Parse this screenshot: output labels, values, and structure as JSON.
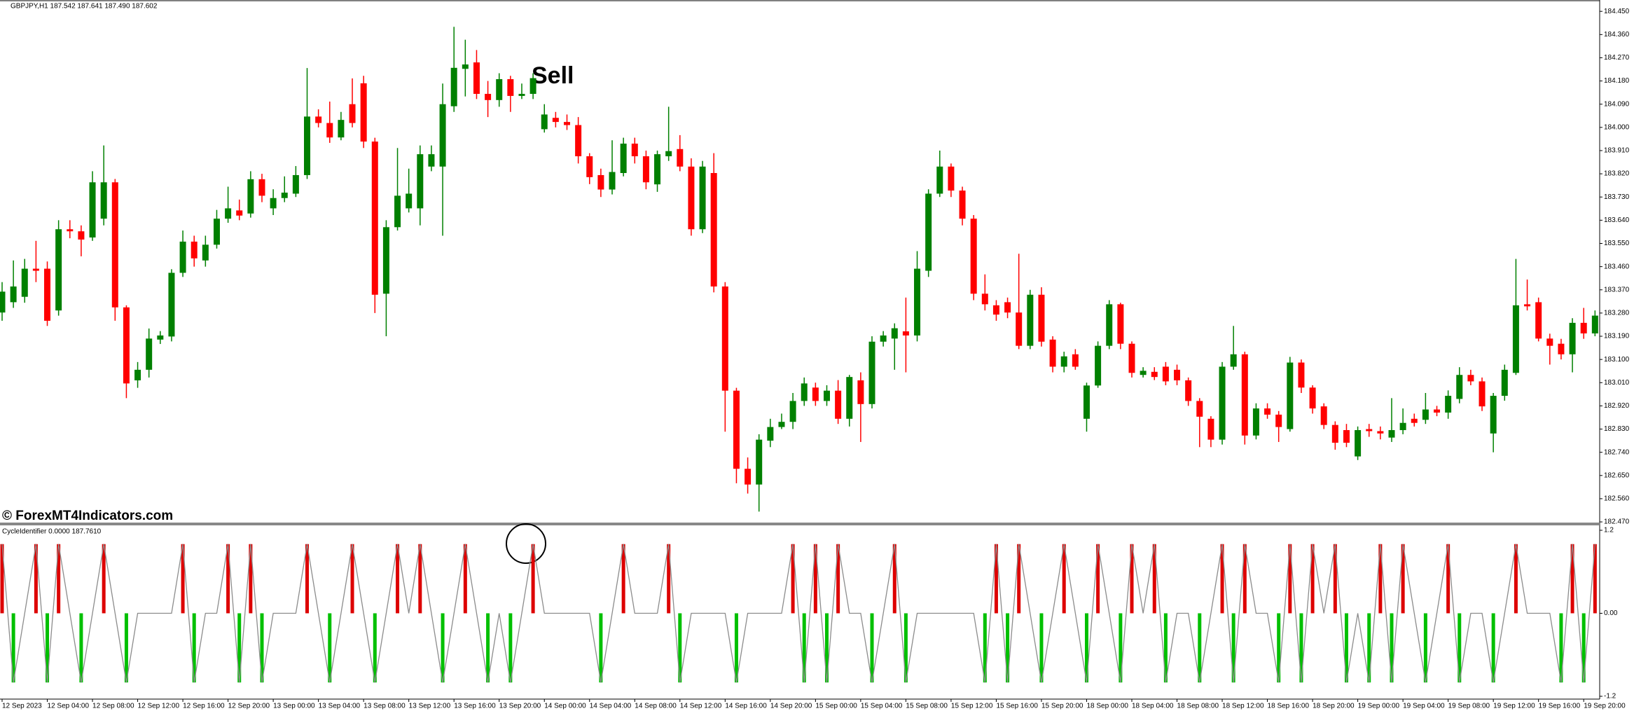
{
  "chart_data": [
    {
      "type": "candlestick",
      "title": "GBPJPY,H1  187.542 187.641 187.490 187.602",
      "annotation": "Sell",
      "watermark": "© ForexMT4Indicators.com",
      "up_color": "#008000",
      "down_color": "#ff0000",
      "categories": [
        "12 Sep 2023",
        null,
        null,
        null,
        "12 Sep 04:00",
        null,
        null,
        null,
        "12 Sep 08:00",
        null,
        null,
        null,
        "12 Sep 12:00",
        null,
        null,
        null,
        "12 Sep 16:00",
        null,
        null,
        null,
        "12 Sep 20:00",
        null,
        null,
        null,
        "13 Sep 00:00",
        null,
        null,
        null,
        "13 Sep 04:00",
        null,
        null,
        null,
        "13 Sep 08:00",
        null,
        null,
        null,
        "13 Sep 12:00",
        null,
        null,
        null,
        "13 Sep 16:00",
        null,
        null,
        null,
        "13 Sep 20:00",
        null,
        null,
        null,
        "14 Sep 00:00",
        null,
        null,
        null,
        "14 Sep 04:00",
        null,
        null,
        null,
        "14 Sep 08:00",
        null,
        null,
        null,
        "14 Sep 12:00",
        null,
        null,
        null,
        "14 Sep 16:00",
        null,
        null,
        null,
        "14 Sep 20:00",
        null,
        null,
        null,
        "15 Sep 00:00",
        null,
        null,
        null,
        "15 Sep 04:00",
        null,
        null,
        null,
        "15 Sep 08:00",
        null,
        null,
        null,
        "15 Sep 12:00",
        null,
        null,
        null,
        "15 Sep 16:00",
        null,
        null,
        null,
        "15 Sep 20:00",
        null,
        null,
        null,
        "18 Sep 00:00",
        null,
        null,
        null,
        "18 Sep 04:00",
        null,
        null,
        null,
        "18 Sep 08:00",
        null,
        null,
        null,
        "18 Sep 12:00",
        null,
        null,
        null,
        "18 Sep 16:00",
        null,
        null,
        null,
        "18 Sep 20:00",
        null,
        null,
        null,
        "19 Sep 00:00",
        null,
        null,
        null,
        "19 Sep 04:00",
        null,
        null,
        null,
        "19 Sep 08:00",
        null,
        null,
        null,
        "19 Sep 12:00",
        null,
        null,
        null,
        "19 Sep 16:00",
        null,
        null,
        null,
        "19 Sep 20:00",
        null
      ],
      "open": [
        183.282,
        183.322,
        183.343,
        183.452,
        183.452,
        183.29,
        183.605,
        183.597,
        183.573,
        183.646,
        183.787,
        183.302,
        183.019,
        183.06,
        183.177,
        183.189,
        183.436,
        183.557,
        183.484,
        183.545,
        183.646,
        183.678,
        183.666,
        183.799,
        183.686,
        183.726,
        183.743,
        183.815,
        184.042,
        184.017,
        183.961,
        184.09,
        184.171,
        183.945,
        183.355,
        183.613,
        183.686,
        183.686,
        183.848,
        183.848,
        184.082,
        184.227,
        184.252,
        184.13,
        184.106,
        184.187,
        184.122,
        184.13,
        183.993,
        184.037,
        184.021,
        184.009,
        183.888,
        183.815,
        183.759,
        183.823,
        183.937,
        183.888,
        183.779,
        183.888,
        183.916,
        183.848,
        183.605,
        183.823,
        183.383,
        182.979,
        182.676,
        182.615,
        182.785,
        182.838,
        182.858,
        182.939,
        182.991,
        182.939,
        182.979,
        182.87,
        183.019,
        182.927,
        183.169,
        183.181,
        183.209,
        183.193,
        183.444,
        183.743,
        183.848,
        183.755,
        183.646,
        183.355,
        183.31,
        183.322,
        183.282,
        183.153,
        183.351,
        183.177,
        183.072,
        183.12,
        182.87,
        182.999,
        183.153,
        183.314,
        183.161,
        183.04,
        183.052,
        183.072,
        183.06,
        183.019,
        182.939,
        182.87,
        182.789,
        183.072,
        183.12,
        182.805,
        182.91,
        182.886,
        182.83,
        183.088,
        182.991,
        182.918,
        182.846,
        182.826,
        182.724,
        182.83,
        182.822,
        182.797,
        182.826,
        182.87,
        182.866,
        182.906,
        182.894,
        182.947,
        183.04,
        183.015,
        182.813,
        182.959,
        183.048,
        183.314,
        183.322,
        183.181,
        183.161,
        183.12,
        183.242,
        183.201
      ],
      "high": [
        183.4,
        183.484,
        183.49,
        183.56,
        183.48,
        183.64,
        183.64,
        183.62,
        183.83,
        183.93,
        183.8,
        183.31,
        183.09,
        183.22,
        183.21,
        183.45,
        183.6,
        183.58,
        183.58,
        183.68,
        183.77,
        183.72,
        183.83,
        183.82,
        183.76,
        183.81,
        183.85,
        184.23,
        184.07,
        184.1,
        184.06,
        184.19,
        184.2,
        183.96,
        183.64,
        183.92,
        183.84,
        183.93,
        183.93,
        184.17,
        184.39,
        184.34,
        184.3,
        184.18,
        184.21,
        184.2,
        184.17,
        184.21,
        184.09,
        184.06,
        184.05,
        184.04,
        183.9,
        183.84,
        183.95,
        183.96,
        183.96,
        183.91,
        183.91,
        184.08,
        183.97,
        183.88,
        183.87,
        183.9,
        183.4,
        182.99,
        182.72,
        182.81,
        182.87,
        182.89,
        182.97,
        183.03,
        183.01,
        183.0,
        183.02,
        183.04,
        183.05,
        183.19,
        183.21,
        183.24,
        183.34,
        183.52,
        183.76,
        183.91,
        183.86,
        183.77,
        183.66,
        183.43,
        183.33,
        183.34,
        183.51,
        183.37,
        183.38,
        183.19,
        183.13,
        183.14,
        183.01,
        183.17,
        183.33,
        183.32,
        183.17,
        183.07,
        183.07,
        183.09,
        183.08,
        183.03,
        182.95,
        182.88,
        183.09,
        183.23,
        183.13,
        182.93,
        182.93,
        182.9,
        183.11,
        183.1,
        183.0,
        182.93,
        182.86,
        182.85,
        182.84,
        182.85,
        182.84,
        182.95,
        182.91,
        182.89,
        182.97,
        182.92,
        182.98,
        183.07,
        183.06,
        183.03,
        182.97,
        183.08,
        183.49,
        183.41,
        183.34,
        183.2,
        183.18,
        183.26,
        183.3,
        183.29
      ],
      "low": [
        183.25,
        183.3,
        183.32,
        183.4,
        183.23,
        183.27,
        183.57,
        183.5,
        183.56,
        183.62,
        183.25,
        182.95,
        182.99,
        183.03,
        183.16,
        183.17,
        183.42,
        183.46,
        183.46,
        183.53,
        183.63,
        183.64,
        183.65,
        183.71,
        183.66,
        183.71,
        183.73,
        183.8,
        184.0,
        183.94,
        183.95,
        184.0,
        183.92,
        183.28,
        183.19,
        183.6,
        183.67,
        183.62,
        183.83,
        183.58,
        184.06,
        184.12,
        184.11,
        184.04,
        184.08,
        184.06,
        184.11,
        184.11,
        183.98,
        184.0,
        183.99,
        183.86,
        183.78,
        183.73,
        183.74,
        183.81,
        183.86,
        183.76,
        183.75,
        183.87,
        183.83,
        183.58,
        183.59,
        183.36,
        182.82,
        182.62,
        182.58,
        182.51,
        182.76,
        182.83,
        182.83,
        182.92,
        182.92,
        182.92,
        182.85,
        182.84,
        182.78,
        182.91,
        183.15,
        183.06,
        183.05,
        183.17,
        183.42,
        183.73,
        183.73,
        183.62,
        183.33,
        183.29,
        183.25,
        183.26,
        183.14,
        183.14,
        183.15,
        183.05,
        183.05,
        183.06,
        182.82,
        182.99,
        183.14,
        183.14,
        183.03,
        183.03,
        183.02,
        183.0,
        183.0,
        182.92,
        182.76,
        182.76,
        182.77,
        183.06,
        182.77,
        182.79,
        182.87,
        182.78,
        182.82,
        182.97,
        182.89,
        182.83,
        182.75,
        182.76,
        182.71,
        182.8,
        182.79,
        182.78,
        182.81,
        182.84,
        182.85,
        182.88,
        182.87,
        182.93,
        183.0,
        182.9,
        182.74,
        182.94,
        183.04,
        183.29,
        183.17,
        183.08,
        183.1,
        183.05,
        183.18,
        183.19
      ],
      "close": [
        183.363,
        183.383,
        183.452,
        183.444,
        183.25,
        183.605,
        183.597,
        183.565,
        183.787,
        183.787,
        183.302,
        183.007,
        183.06,
        183.181,
        183.193,
        183.436,
        183.557,
        183.492,
        183.545,
        183.646,
        183.686,
        183.658,
        183.799,
        183.735,
        183.726,
        183.747,
        183.815,
        184.042,
        184.017,
        183.961,
        184.029,
        184.017,
        183.945,
        183.351,
        183.613,
        183.735,
        183.743,
        183.896,
        183.896,
        184.09,
        184.231,
        184.244,
        184.13,
        184.106,
        184.187,
        184.122,
        184.13,
        184.191,
        184.05,
        184.021,
        184.009,
        183.888,
        183.807,
        183.759,
        183.827,
        183.937,
        183.888,
        183.787,
        183.896,
        183.908,
        183.848,
        183.605,
        183.848,
        183.383,
        182.979,
        182.676,
        182.615,
        182.789,
        182.838,
        182.858,
        182.939,
        183.007,
        182.939,
        182.979,
        182.87,
        183.032,
        182.927,
        183.169,
        183.193,
        183.221,
        183.193,
        183.452,
        183.743,
        183.848,
        183.755,
        183.646,
        183.355,
        183.314,
        183.274,
        183.282,
        183.153,
        183.351,
        183.169,
        183.072,
        183.112,
        183.072,
        182.999,
        183.153,
        183.314,
        183.161,
        183.048,
        183.056,
        183.032,
        183.015,
        183.019,
        182.939,
        182.878,
        182.789,
        183.072,
        183.12,
        182.805,
        182.91,
        182.886,
        182.838,
        183.088,
        182.991,
        182.91,
        182.846,
        182.777,
        182.777,
        182.826,
        182.822,
        182.813,
        182.826,
        182.854,
        182.854,
        182.906,
        182.894,
        182.959,
        183.04,
        183.015,
        182.918,
        182.959,
        183.06,
        183.31,
        183.306,
        183.181,
        183.153,
        183.12,
        183.242,
        183.201,
        183.27
      ],
      "ylim": [
        182.462,
        184.494
      ],
      "yticks": [
        {
          "value": 184.45,
          "label": "184.450"
        },
        {
          "value": 184.36,
          "label": "184.360"
        },
        {
          "value": 184.27,
          "label": "184.270"
        },
        {
          "value": 184.18,
          "label": "184.180"
        },
        {
          "value": 184.09,
          "label": "184.090"
        },
        {
          "value": 184.0,
          "label": "184.000"
        },
        {
          "value": 183.91,
          "label": "183.910"
        },
        {
          "value": 183.82,
          "label": "183.820"
        },
        {
          "value": 183.73,
          "label": "183.730"
        },
        {
          "value": 183.64,
          "label": "183.640"
        },
        {
          "value": 183.55,
          "label": "183.550"
        },
        {
          "value": 183.46,
          "label": "183.460"
        },
        {
          "value": 183.37,
          "label": "183.370"
        },
        {
          "value": 183.28,
          "label": "183.280"
        },
        {
          "value": 183.19,
          "label": "183.190"
        },
        {
          "value": 183.1,
          "label": "183.100"
        },
        {
          "value": 183.01,
          "label": "183.010"
        },
        {
          "value": 182.92,
          "label": "182.920"
        },
        {
          "value": 182.83,
          "label": "182.830"
        },
        {
          "value": 182.74,
          "label": "182.740"
        },
        {
          "value": 182.65,
          "label": "182.650"
        },
        {
          "value": 182.56,
          "label": "182.560"
        },
        {
          "value": 182.47,
          "label": "182.470"
        }
      ]
    },
    {
      "type": "oscillator",
      "title": "CycleIdentifier 0.0000 187.7610",
      "line": {
        "color": "#8c8c8c",
        "values": [
          1,
          -1,
          0,
          1,
          -1,
          1,
          0,
          -1,
          0,
          1,
          0,
          -1,
          0,
          0,
          0,
          0,
          1,
          -1,
          0,
          0,
          1,
          -1,
          1,
          -1,
          0,
          0,
          0,
          1,
          0,
          -1,
          0,
          1,
          0,
          -1,
          0,
          1,
          0,
          1,
          0,
          -1,
          0,
          1,
          0,
          -1,
          0,
          -1,
          0,
          1,
          0,
          0,
          0,
          0,
          0,
          -1,
          0,
          1,
          0,
          0,
          0,
          1,
          -1,
          0,
          0,
          0,
          0,
          -1,
          0,
          0,
          0,
          0,
          1,
          -1,
          1,
          -1,
          1,
          0,
          0,
          -1,
          0,
          1,
          -1,
          0,
          0,
          0,
          0,
          0,
          0,
          -1,
          1,
          -1,
          1,
          0,
          -1,
          0,
          1,
          0,
          -1,
          1,
          0,
          -1,
          1,
          0,
          1,
          -1,
          0,
          0,
          -1,
          0,
          1,
          -1,
          1,
          0,
          0,
          -1,
          1,
          -1,
          1,
          0,
          1,
          -1,
          0,
          -1,
          1,
          -1,
          1,
          0,
          -1,
          0,
          1,
          -1,
          0,
          0,
          -1,
          0,
          1,
          0,
          0,
          0,
          -1,
          1,
          -1,
          1
        ]
      },
      "signals": {
        "up_color": "#dd0000",
        "down_color": "#00c000",
        "values": [
          1,
          -1,
          null,
          1,
          -1,
          1,
          null,
          -1,
          null,
          1,
          null,
          -1,
          null,
          null,
          null,
          null,
          1,
          -1,
          null,
          null,
          1,
          -1,
          1,
          -1,
          null,
          null,
          null,
          1,
          null,
          -1,
          null,
          1,
          null,
          -1,
          null,
          1,
          null,
          1,
          null,
          -1,
          null,
          1,
          null,
          -1,
          null,
          -1,
          null,
          1,
          null,
          null,
          null,
          null,
          null,
          -1,
          null,
          1,
          null,
          null,
          null,
          1,
          -1,
          null,
          null,
          null,
          null,
          -1,
          null,
          null,
          null,
          null,
          1,
          -1,
          1,
          -1,
          1,
          null,
          null,
          -1,
          null,
          1,
          -1,
          null,
          null,
          null,
          null,
          null,
          null,
          -1,
          1,
          -1,
          1,
          null,
          -1,
          null,
          1,
          null,
          -1,
          1,
          null,
          -1,
          1,
          null,
          1,
          -1,
          null,
          null,
          -1,
          null,
          1,
          -1,
          1,
          null,
          null,
          -1,
          1,
          -1,
          1,
          null,
          1,
          -1,
          null,
          -1,
          1,
          -1,
          1,
          null,
          -1,
          null,
          1,
          -1,
          null,
          null,
          -1,
          null,
          1,
          null,
          null,
          null,
          -1,
          1,
          -1,
          1
        ]
      },
      "ylim": [
        -1.2,
        1.2
      ],
      "yticks": [
        1.2,
        {
          "value": 0,
          "label": "0.00"
        },
        -1.2
      ]
    }
  ]
}
